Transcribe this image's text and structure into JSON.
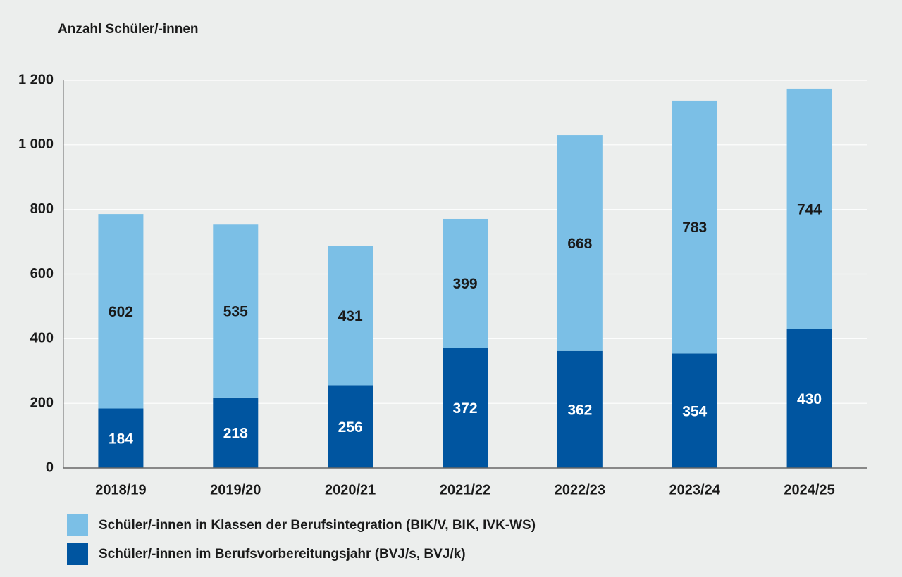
{
  "chart_data": {
    "type": "stacked-bar",
    "title": "Anzahl Schüler/-innen",
    "categories": [
      "2018/19",
      "2019/20",
      "2020/21",
      "2021/22",
      "2022/23",
      "2023/24",
      "2024/25"
    ],
    "series": [
      {
        "name": "Schüler/-innen in Klassen der Berufsintegration (BIK/V, BIK, IVK-WS)",
        "color": "#7bbfe6",
        "label_color": "#1a1a1a",
        "values": [
          602,
          535,
          431,
          399,
          668,
          783,
          744
        ]
      },
      {
        "name": "Schüler/-innen im Berufsvorbereitungsjahr (BVJ/s, BVJ/k)",
        "color": "#0055a0",
        "label_color": "#ffffff",
        "values": [
          184,
          218,
          256,
          372,
          362,
          354,
          430
        ]
      }
    ],
    "ylim": [
      0,
      1200
    ],
    "yticks": [
      0,
      200,
      400,
      600,
      800,
      {
        "value": 1000,
        "label": "1 000"
      },
      {
        "value": 1200,
        "label": "1 200"
      }
    ],
    "grid": true
  }
}
